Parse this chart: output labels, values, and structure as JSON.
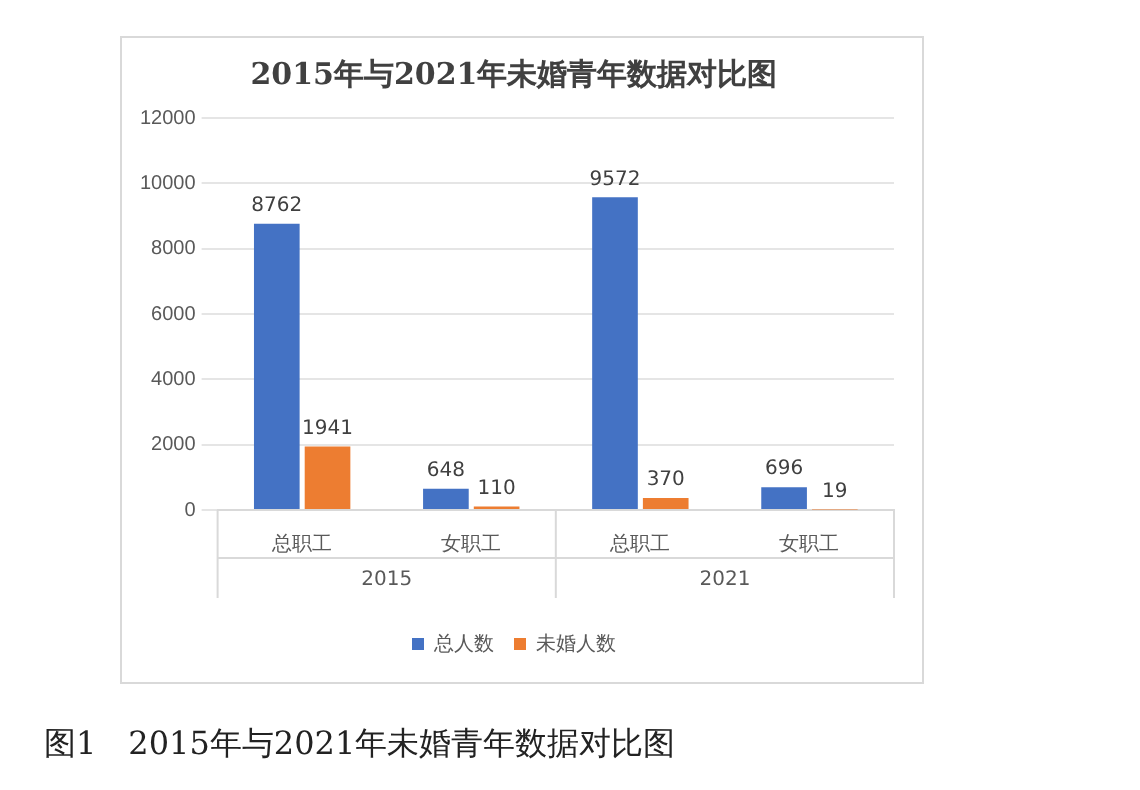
{
  "chart_data": {
    "type": "bar",
    "title": "2015年与2021年未婚青年数据对比图",
    "categories": [
      "总职工",
      "女职工",
      "总职工",
      "女职工"
    ],
    "series": [
      {
        "name": "总人数",
        "color": "#4472c4",
        "values": [
          8762,
          648,
          9572,
          696
        ]
      },
      {
        "name": "未婚人数",
        "color": "#ed7d31",
        "values": [
          1941,
          110,
          370,
          19
        ]
      }
    ],
    "ylim": [
      0,
      12000
    ],
    "yticks": [
      0,
      2000,
      4000,
      6000,
      8000,
      10000,
      12000
    ],
    "grid": "y",
    "legend": "bottom",
    "data_labels": true,
    "annotations": [
      "2015",
      "2021",
      "图1　2015年与2021年未婚青年数据对比图"
    ]
  }
}
